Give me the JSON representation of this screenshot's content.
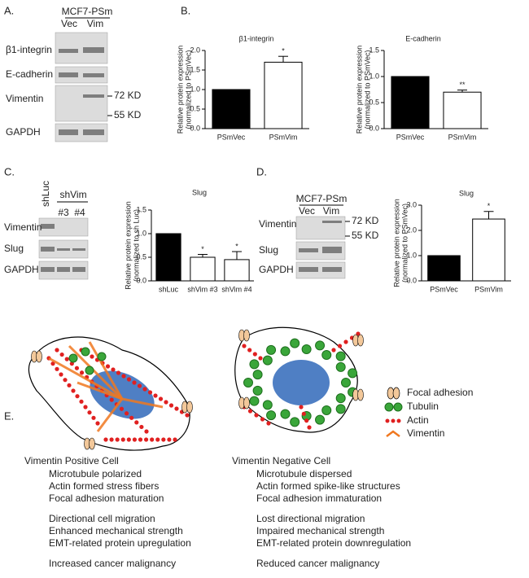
{
  "panels": {
    "A": {
      "label": "A.",
      "header": "MCF7-PSm",
      "lanes": [
        "Vec",
        "Vim"
      ],
      "rows": [
        "β1-integrin",
        "E-cadherin",
        "Vimentin",
        "GAPDH"
      ],
      "markers": [
        "72 KD",
        "55 KD"
      ]
    },
    "B": {
      "label": "B."
    },
    "C": {
      "label": "C.",
      "lanes": [
        "shLuc",
        "shVim",
        "#3",
        "#4"
      ],
      "rows": [
        "Vimentin",
        "Slug",
        "GAPDH"
      ]
    },
    "D": {
      "label": "D.",
      "header": "MCF7-PSm",
      "lanes": [
        "Vec",
        "Vim"
      ],
      "rows": [
        "Vimentin",
        "Slug",
        "GAPDH"
      ],
      "markers": [
        "72 KD",
        "55 KD"
      ]
    },
    "E": {
      "label": "E.",
      "legend": [
        "Focal adhesion",
        "Tubulin",
        "Actin",
        "Vimentin"
      ],
      "cells": [
        {
          "title": "Vimentin Positive Cell",
          "groups": [
            [
              "Microtubule polarized",
              "Actin formed stress fibers",
              "Focal adhesion maturation"
            ],
            [
              "Directional cell migration",
              "Enhanced mechanical strength",
              "EMT-related protein upregulation"
            ],
            [
              "Increased cancer malignancy"
            ]
          ]
        },
        {
          "title": "Vimentin Negative Cell",
          "groups": [
            [
              "Microtubule dispersed",
              "Actin formed spike-like structures",
              "Focal adhesion immaturation"
            ],
            [
              "Lost directional migration",
              "Impaired mechanical strength",
              "EMT-related protein downregulation"
            ],
            [
              "Reduced cancer malignancy"
            ]
          ]
        }
      ]
    }
  },
  "chart_data": [
    {
      "type": "bar",
      "title": "β1-integrin",
      "ylabel": [
        "Relative protein expression",
        "(normalized to PSmVec)"
      ],
      "categories": [
        "PSmVec",
        "PSmVim"
      ],
      "values": [
        1.0,
        1.7
      ],
      "errors": [
        null,
        0.15
      ],
      "annotations": [
        null,
        "*"
      ],
      "colors": [
        "#000000",
        "#ffffff"
      ],
      "ylim": [
        0,
        2.0
      ],
      "yticks": [
        {
          "value": 0,
          "label": "0.0"
        },
        0.5,
        {
          "value": 1,
          "label": "1.0"
        },
        1.5,
        {
          "value": 2,
          "label": "2.0"
        }
      ]
    },
    {
      "type": "bar",
      "title": "E-cadherin",
      "ylabel": [
        "Relative protein expression",
        "(normalized to PSmVec)"
      ],
      "categories": [
        "PSmVec",
        "PSmVim"
      ],
      "values": [
        1.0,
        0.7
      ],
      "errors": [
        null,
        0.04
      ],
      "annotations": [
        null,
        "**"
      ],
      "colors": [
        "#000000",
        "#ffffff"
      ],
      "ylim": [
        0,
        1.5
      ],
      "yticks": [
        {
          "value": 0,
          "label": "0.0"
        },
        0.5,
        {
          "value": 1,
          "label": "1.0"
        },
        1.5
      ]
    },
    {
      "type": "bar",
      "title": "Slug",
      "ylabel": [
        "Relative protein expression",
        "(normalized to sh Luc)"
      ],
      "categories": [
        "shLuc",
        "shVim #3",
        "shVim #4"
      ],
      "values": [
        1.0,
        0.5,
        0.45
      ],
      "errors": [
        null,
        0.06,
        0.17
      ],
      "annotations": [
        null,
        "*",
        "*"
      ],
      "colors": [
        "#000000",
        "#ffffff",
        "#ffffff"
      ],
      "ylim": [
        0,
        1.5
      ],
      "yticks": [
        {
          "value": 0,
          "label": "0.0"
        },
        0.5,
        {
          "value": 1,
          "label": "1.0"
        },
        1.5
      ]
    },
    {
      "type": "bar",
      "title": "Slug",
      "ylabel": [
        "Relative protein expression",
        "(normalized to PSmVec)"
      ],
      "categories": [
        "PSmVec",
        "PSmVim"
      ],
      "values": [
        1.0,
        2.45
      ],
      "errors": [
        null,
        0.3
      ],
      "annotations": [
        null,
        "*"
      ],
      "colors": [
        "#000000",
        "#ffffff"
      ],
      "ylim": [
        0,
        3.0
      ],
      "yticks": [
        {
          "value": 0,
          "label": "0.0"
        },
        {
          "value": 1,
          "label": "1.0"
        },
        {
          "value": 2,
          "label": "2.0"
        },
        {
          "value": 3,
          "label": "3.0"
        }
      ]
    }
  ]
}
